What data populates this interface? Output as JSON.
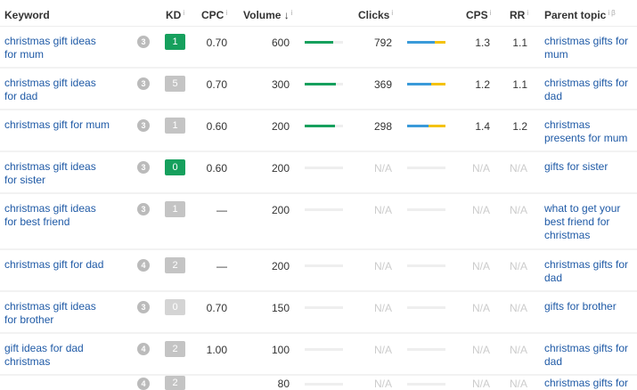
{
  "header": {
    "keyword": "Keyword",
    "kd": "KD",
    "cpc": "CPC",
    "volume": "Volume ↓",
    "clicks": "Clicks",
    "cps": "CPS",
    "rr": "RR",
    "parent_topic": "Parent topic",
    "info": "i",
    "beta": "β"
  },
  "colors": {
    "kd_green": "#16a05d",
    "kd_gray": "#c4c4c4",
    "link": "#1f5aa6",
    "volume_bar": "#16a05d",
    "clicks_blue": "#3a9ad9",
    "clicks_yellow": "#f4c20d"
  },
  "rows": [
    {
      "keyword": "christmas gift ideas for mum",
      "serp": "3",
      "kd": "1",
      "kd_color": "#16a05d",
      "cpc": "0.70",
      "volume": "600",
      "volume_fill": 0.75,
      "clicks": "792",
      "clicks_blue": 0.72,
      "cps": "1.3",
      "rr": "1.1",
      "parent": "christmas gifts for mum"
    },
    {
      "keyword": "christmas gift ideas for dad",
      "serp": "3",
      "kd": "5",
      "kd_color": "#c4c4c4",
      "cpc": "0.70",
      "volume": "300",
      "volume_fill": 0.82,
      "clicks": "369",
      "clicks_blue": 0.62,
      "cps": "1.2",
      "rr": "1.1",
      "parent": "christmas gifts for dad"
    },
    {
      "keyword": "christmas gift for mum",
      "serp": "3",
      "kd": "1",
      "kd_color": "#c4c4c4",
      "cpc": "0.60",
      "volume": "200",
      "volume_fill": 0.78,
      "clicks": "298",
      "clicks_blue": 0.55,
      "cps": "1.4",
      "rr": "1.2",
      "parent": "christmas presents for mum"
    },
    {
      "keyword": "christmas gift ideas for sister",
      "serp": "3",
      "kd": "0",
      "kd_color": "#16a05d",
      "cpc": "0.60",
      "volume": "200",
      "volume_fill": 0,
      "clicks": "N/A",
      "clicks_blue": 0,
      "cps": "N/A",
      "rr": "N/A",
      "parent": "gifts for sister"
    },
    {
      "keyword": "christmas gift ideas for best friend",
      "serp": "3",
      "kd": "1",
      "kd_color": "#c4c4c4",
      "cpc": "—",
      "volume": "200",
      "volume_fill": 0,
      "clicks": "N/A",
      "clicks_blue": 0,
      "cps": "N/A",
      "rr": "N/A",
      "parent": "what to get your best friend for christmas"
    },
    {
      "keyword": "christmas gift for dad",
      "serp": "4",
      "kd": "2",
      "kd_color": "#c4c4c4",
      "cpc": "—",
      "volume": "200",
      "volume_fill": 0,
      "clicks": "N/A",
      "clicks_blue": 0,
      "cps": "N/A",
      "rr": "N/A",
      "parent": "christmas gifts for dad"
    },
    {
      "keyword": "christmas gift ideas for brother",
      "serp": "3",
      "kd": "0",
      "kd_color": "#d4d4d4",
      "cpc": "0.70",
      "volume": "150",
      "volume_fill": 0,
      "clicks": "N/A",
      "clicks_blue": 0,
      "cps": "N/A",
      "rr": "N/A",
      "parent": "gifts for brother"
    },
    {
      "keyword": "gift ideas for dad christmas",
      "serp": "4",
      "kd": "2",
      "kd_color": "#c4c4c4",
      "cpc": "1.00",
      "volume": "100",
      "volume_fill": 0,
      "clicks": "N/A",
      "clicks_blue": 0,
      "cps": "N/A",
      "rr": "N/A",
      "parent": "christmas gifts for dad"
    },
    {
      "keyword": "",
      "serp": "4",
      "kd": "2",
      "kd_color": "#c4c4c4",
      "cpc": "",
      "volume": "80",
      "volume_fill": 0,
      "clicks": "N/A",
      "clicks_blue": 0,
      "cps": "N/A",
      "rr": "N/A",
      "parent": "christmas gifts for"
    }
  ]
}
